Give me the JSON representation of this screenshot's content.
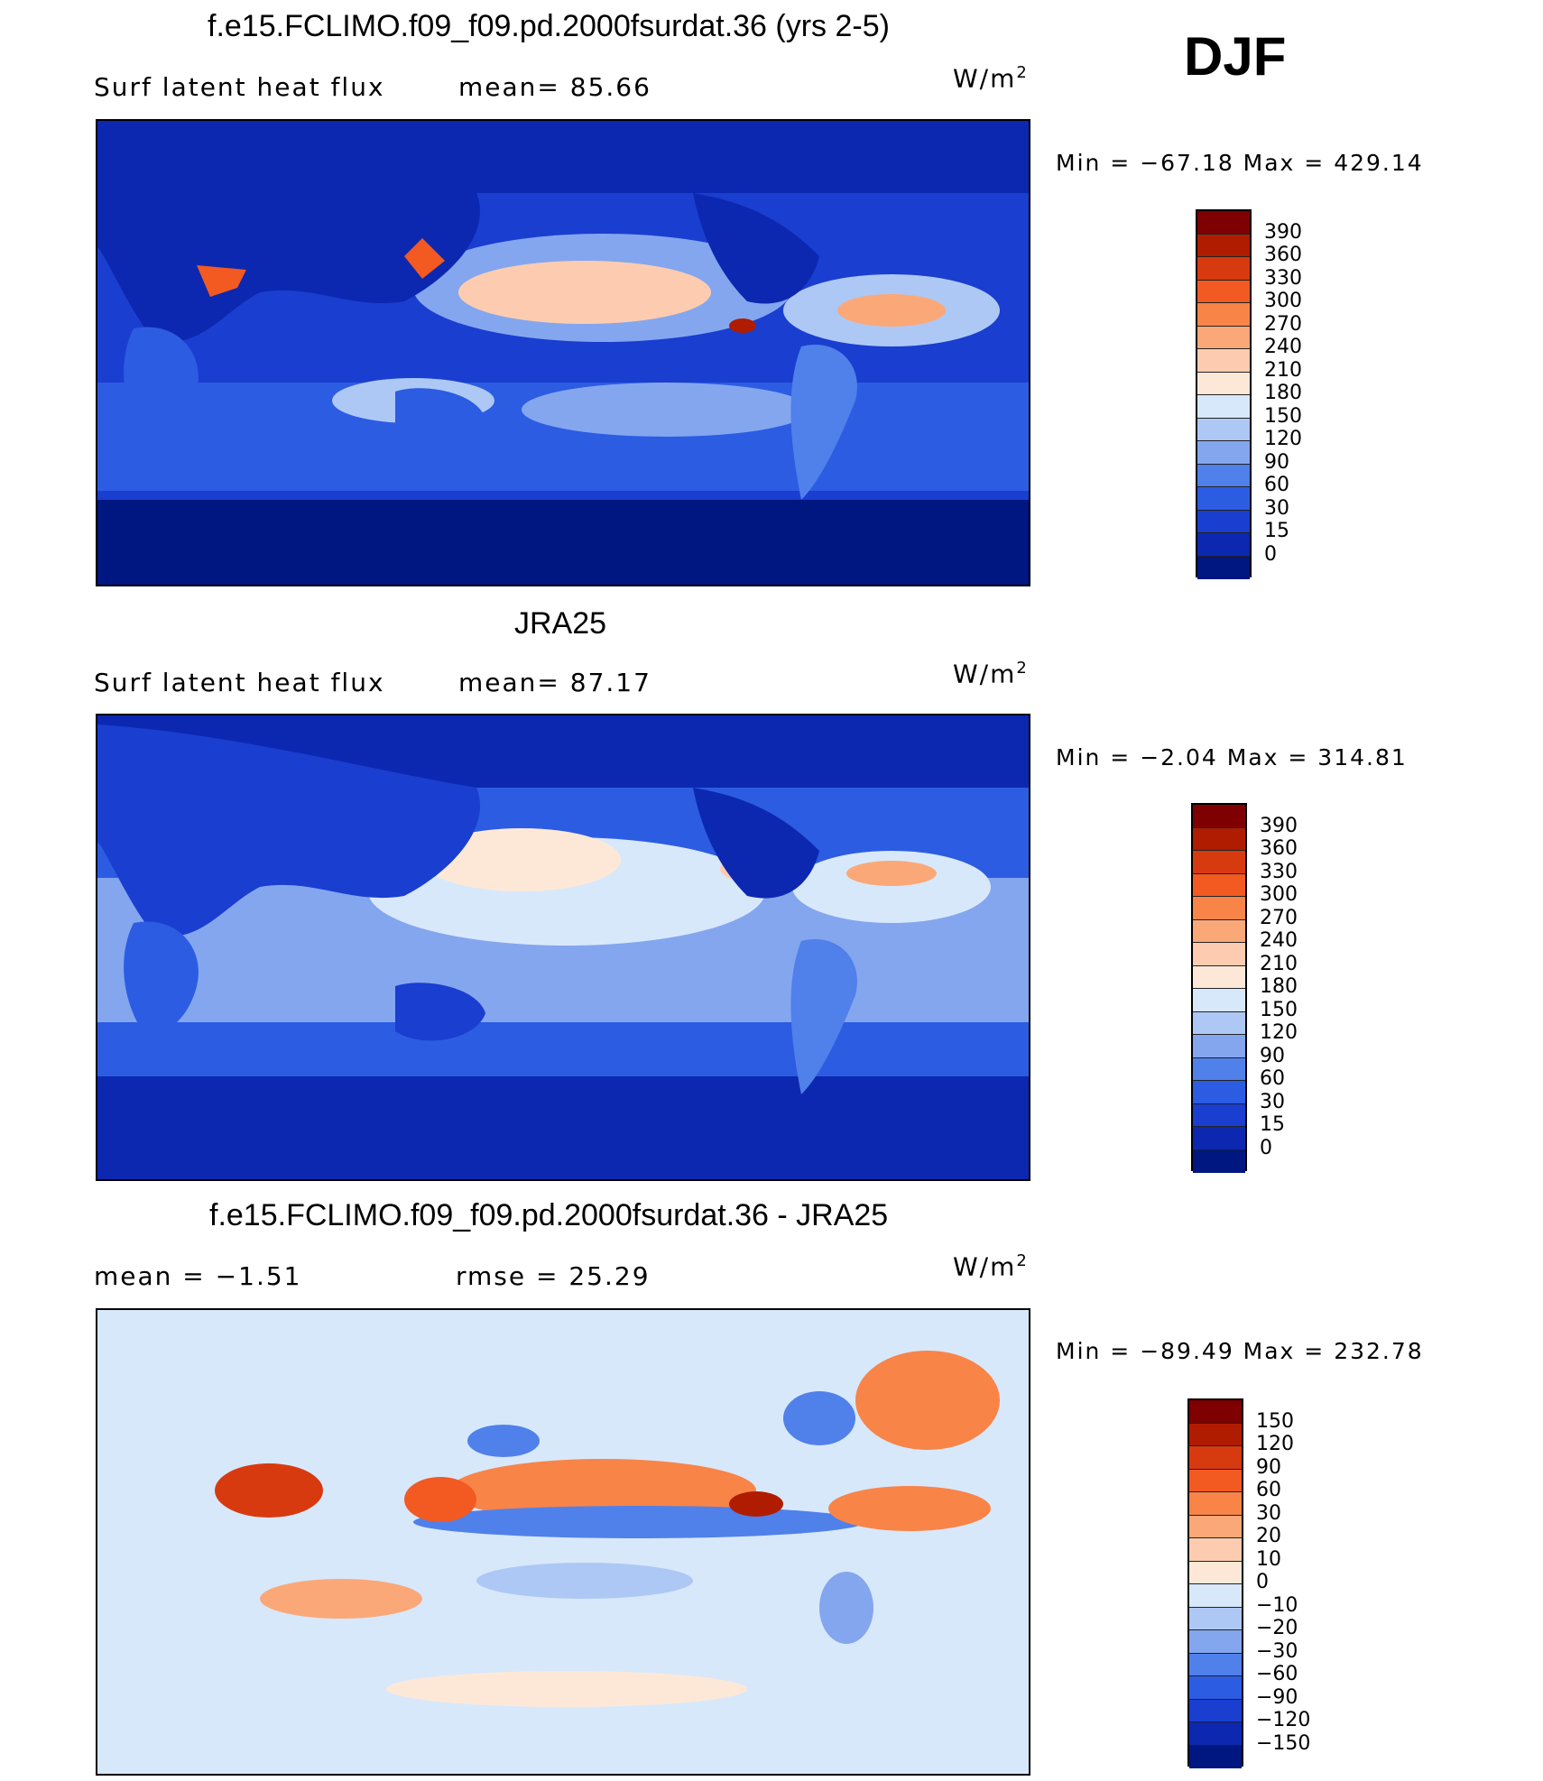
{
  "season": "DJF",
  "panels": [
    {
      "title": "f.e15.FCLIMO.f09_f09.pd.2000fsurdat.36 (yrs 2-5)",
      "left_label": "Surf  latent  heat  flux",
      "mid_label": "mean=   85.66",
      "units_base": "W/m",
      "units_exp": "2",
      "minmax": "Min  =  −67.18  Max  =  429.14",
      "colorbar_labels": [
        "390",
        "360",
        "330",
        "300",
        "270",
        "240",
        "210",
        "180",
        "150",
        "120",
        "90",
        "60",
        "30",
        "15",
        "0"
      ],
      "colorbar_colors": [
        "#7f0000",
        "#b01c00",
        "#d83a10",
        "#f25a22",
        "#f88448",
        "#fba878",
        "#fdccb0",
        "#fde8d8",
        "#d8e8fb",
        "#aec8f5",
        "#84a6ef",
        "#5080ea",
        "#2c5ce2",
        "#1a3ed0",
        "#0c28b0",
        "#001680"
      ]
    },
    {
      "title": "JRA25",
      "left_label": "Surf  latent  heat  flux",
      "mid_label": "mean=   87.17",
      "units_base": "W/m",
      "units_exp": "2",
      "minmax": "Min  =    −2.04  Max  =  314.81",
      "colorbar_labels": [
        "390",
        "360",
        "330",
        "300",
        "270",
        "240",
        "210",
        "180",
        "150",
        "120",
        "90",
        "60",
        "30",
        "15",
        "0"
      ],
      "colorbar_colors": [
        "#7f0000",
        "#b01c00",
        "#d83a10",
        "#f25a22",
        "#f88448",
        "#fba878",
        "#fdccb0",
        "#fde8d8",
        "#d8e8fb",
        "#aec8f5",
        "#84a6ef",
        "#5080ea",
        "#2c5ce2",
        "#1a3ed0",
        "#0c28b0",
        "#001680"
      ]
    },
    {
      "title": "f.e15.FCLIMO.f09_f09.pd.2000fsurdat.36 - JRA25",
      "left_label": "mean  =    −1.51",
      "mid_label": "rmse  =    25.29",
      "units_base": "W/m",
      "units_exp": "2",
      "minmax": "Min  =  −89.49  Max  =  232.78",
      "colorbar_labels": [
        "150",
        "120",
        "90",
        "60",
        "30",
        "20",
        "10",
        "0",
        "−10",
        "−20",
        "−30",
        "−60",
        "−90",
        "−120",
        "−150"
      ],
      "colorbar_colors": [
        "#7f0000",
        "#b01c00",
        "#d83a10",
        "#f25a22",
        "#f88448",
        "#fba878",
        "#fdccb0",
        "#fde8d8",
        "#d8e8fb",
        "#aec8f5",
        "#84a6ef",
        "#5080ea",
        "#2c5ce2",
        "#1a3ed0",
        "#0c28b0",
        "#001680"
      ]
    }
  ]
}
